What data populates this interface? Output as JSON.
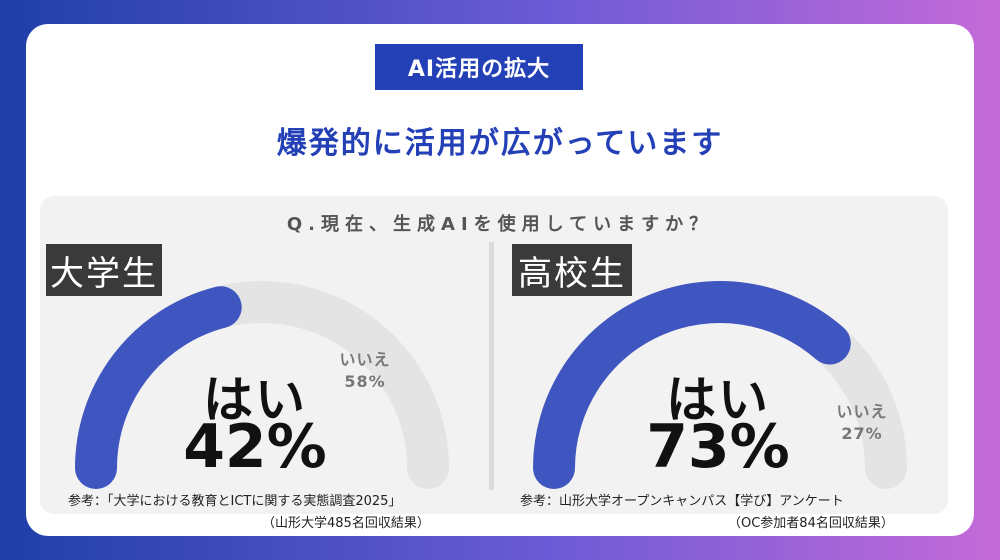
{
  "badge": "AI活用の拡大",
  "headline": "爆発的に活用が広がっています",
  "question": "Q.現在、生成AIを使用していますか？",
  "colors": {
    "accent": "#2440b6",
    "yes_arc": "#3f55bf",
    "no_arc": "#e4e4e4",
    "label_box": "#3a3a3a"
  },
  "chart_data": [
    {
      "type": "pie",
      "group": "大学生",
      "series": [
        {
          "name": "はい",
          "value": 42,
          "display": "42%"
        },
        {
          "name": "いいえ",
          "value": 58,
          "display": "58%"
        }
      ],
      "source_line1": "参考：「大学における教育とICTに関する実態調査2025」",
      "source_line2": "（山形大学485名回収結果）"
    },
    {
      "type": "pie",
      "group": "高校生",
      "series": [
        {
          "name": "はい",
          "value": 73,
          "display": "73%"
        },
        {
          "name": "いいえ",
          "value": 27,
          "display": "27%"
        }
      ],
      "source_line1": "参考：山形大学オープンキャンパス【学び】アンケート",
      "source_line2": "（OC参加者84名回収結果）"
    }
  ]
}
